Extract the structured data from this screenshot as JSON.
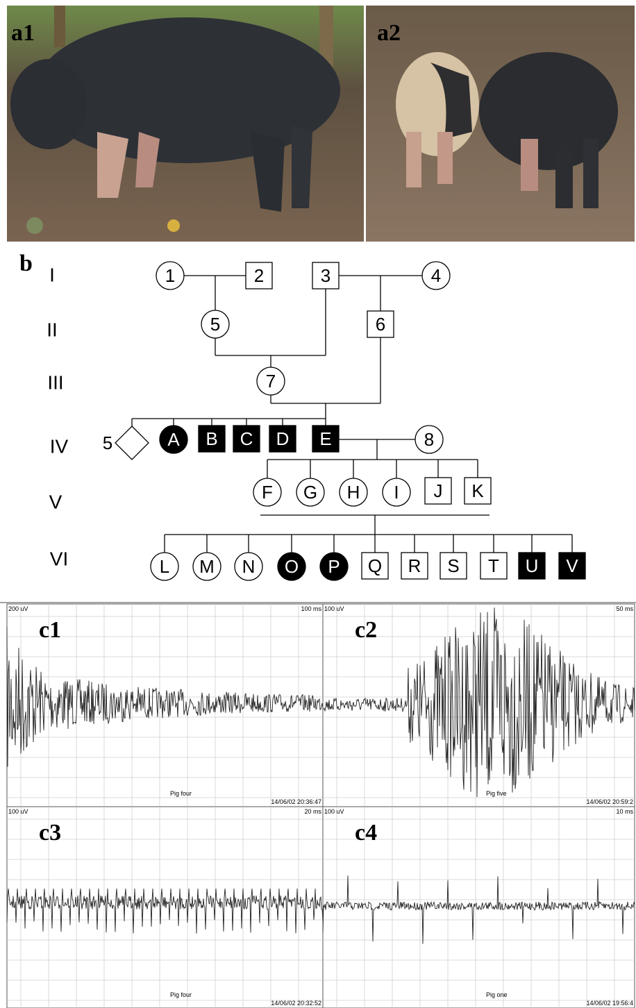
{
  "photos": [
    {
      "label": "a1"
    },
    {
      "label": "a2"
    }
  ],
  "pedigree": {
    "label": "b",
    "generations": [
      "I",
      "II",
      "III",
      "IV",
      "V",
      "VI"
    ],
    "nodes": [
      {
        "label": "1",
        "shape": "circle",
        "affected": false
      },
      {
        "label": "2",
        "shape": "square",
        "affected": false
      },
      {
        "label": "3",
        "shape": "square",
        "affected": false
      },
      {
        "label": "4",
        "shape": "circle",
        "affected": false
      },
      {
        "label": "5",
        "shape": "circle",
        "affected": false
      },
      {
        "label": "6",
        "shape": "square",
        "affected": false
      },
      {
        "label": "7",
        "shape": "circle",
        "affected": false
      },
      {
        "label": "5",
        "shape": "diamond",
        "affected": false
      },
      {
        "label": "A",
        "shape": "circle",
        "affected": true
      },
      {
        "label": "B",
        "shape": "square",
        "affected": true
      },
      {
        "label": "C",
        "shape": "square",
        "affected": true
      },
      {
        "label": "D",
        "shape": "square",
        "affected": true
      },
      {
        "label": "E",
        "shape": "square",
        "affected": true
      },
      {
        "label": "8",
        "shape": "circle",
        "affected": false
      },
      {
        "label": "F",
        "shape": "circle",
        "affected": false
      },
      {
        "label": "G",
        "shape": "circle",
        "affected": false
      },
      {
        "label": "H",
        "shape": "circle",
        "affected": false
      },
      {
        "label": "I",
        "shape": "circle",
        "affected": false
      },
      {
        "label": "J",
        "shape": "square",
        "affected": false
      },
      {
        "label": "K",
        "shape": "square",
        "affected": false
      },
      {
        "label": "L",
        "shape": "circle",
        "affected": false
      },
      {
        "label": "M",
        "shape": "circle",
        "affected": false
      },
      {
        "label": "N",
        "shape": "circle",
        "affected": false
      },
      {
        "label": "O",
        "shape": "circle",
        "affected": true
      },
      {
        "label": "P",
        "shape": "circle",
        "affected": true
      },
      {
        "label": "Q",
        "shape": "square",
        "affected": false
      },
      {
        "label": "R",
        "shape": "square",
        "affected": false
      },
      {
        "label": "S",
        "shape": "square",
        "affected": false
      },
      {
        "label": "T",
        "shape": "square",
        "affected": false
      },
      {
        "label": "U",
        "shape": "square",
        "affected": true
      },
      {
        "label": "V",
        "shape": "square",
        "affected": true
      }
    ]
  },
  "traces": [
    {
      "label": "c1",
      "scale": "200 uV",
      "time": "100 ms",
      "subject": "Pig four",
      "timestamp": "14/06/02 20:36:47"
    },
    {
      "label": "c2",
      "scale": "100 uV",
      "time": "50 ms",
      "subject": "Pig five",
      "timestamp": "14/06/02 20:59:2"
    },
    {
      "label": "c3",
      "scale": "100 uV",
      "time": "20 ms",
      "subject": "Pig four",
      "timestamp": "14/06/02 20:32:52"
    },
    {
      "label": "c4",
      "scale": "100 uV",
      "time": "10 ms",
      "subject": "Pig one",
      "timestamp": "14/06/02 19:56:4"
    }
  ]
}
